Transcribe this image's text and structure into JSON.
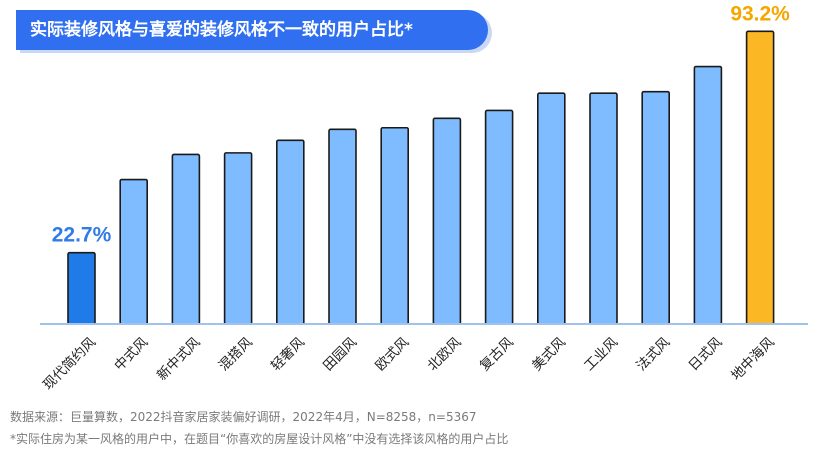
{
  "title": "实际装修风格与喜爱的装修风格不一致的用户占比*",
  "footer": {
    "source": "数据来源：巨量算数，2022抖音家居家装偏好调研，2022年4月，N=8258，n=5367",
    "note": "*实际住房为某一风格的用户中，在题目“你喜欢的房屋设计风格”中没有选择该风格的用户占比"
  },
  "chart_data": {
    "type": "bar",
    "title": "实际装修风格与喜爱的装修风格不一致的用户占比*",
    "categories": [
      "现代简约风",
      "中式风",
      "新中式风",
      "混搭风",
      "轻奢风",
      "田园风",
      "欧式风",
      "北欧风",
      "复古风",
      "美式风",
      "工业风",
      "法式风",
      "日式风",
      "地中海风"
    ],
    "values": [
      22.7,
      46,
      54,
      54.5,
      58.5,
      62,
      62.5,
      65.5,
      68,
      73.5,
      73.5,
      74,
      82,
      93.2
    ],
    "data_labels": [
      "22.7%",
      "",
      "",
      "",
      "",
      "",
      "",
      "",
      "",
      "",
      "",
      "",
      "",
      "93.2%"
    ],
    "ylim": [
      0,
      100
    ],
    "grid": false,
    "colors": {
      "default": "#7fbcff",
      "min": "#1f7be8",
      "max": "#fcb725",
      "min_label": "#2f7be8",
      "max_label": "#f5a700",
      "axis": "#9fc3ee",
      "border": "#1a1a1a",
      "tick_text": "#222222"
    }
  }
}
